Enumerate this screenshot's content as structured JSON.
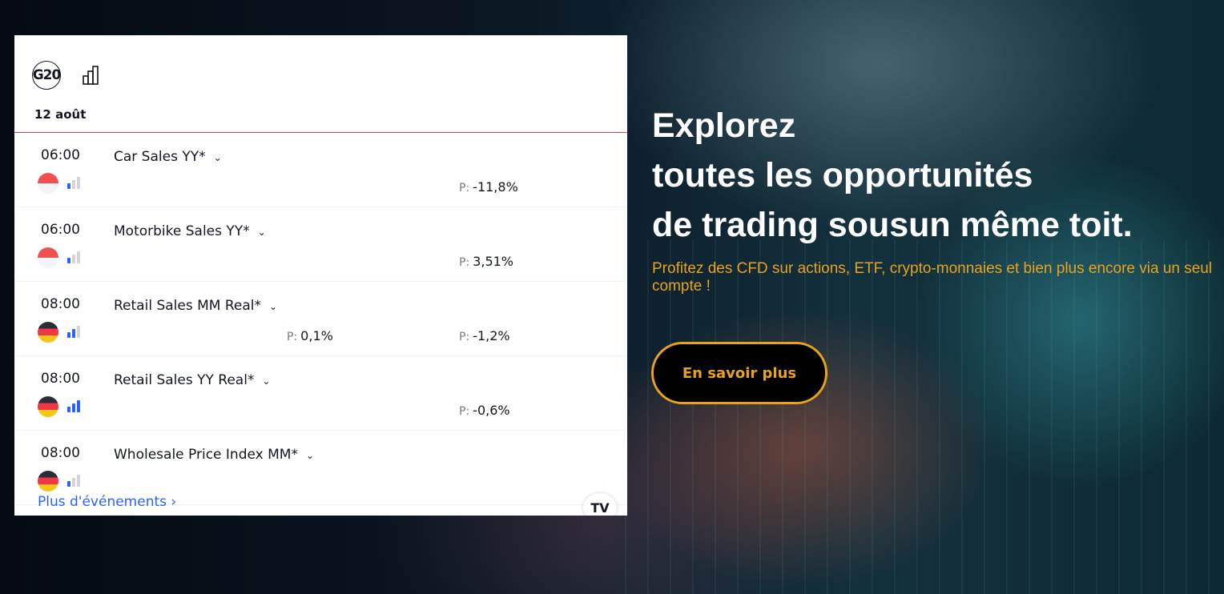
{
  "widget": {
    "date": "12 août",
    "events": [
      {
        "time": "06:00",
        "title": "Car Sales YY*",
        "country": "Indonesia",
        "importance": 1,
        "values": [
          {
            "label": "P:",
            "value": "-11,8%",
            "col": "previous"
          }
        ]
      },
      {
        "time": "06:00",
        "title": "Motorbike Sales YY*",
        "country": "Indonesia",
        "importance": 1,
        "values": [
          {
            "label": "P:",
            "value": "3,51%",
            "col": "previous"
          }
        ]
      },
      {
        "time": "08:00",
        "title": "Retail Sales MM Real*",
        "country": "Germany",
        "importance": 2,
        "values": [
          {
            "label": "P:",
            "value": "0,1%",
            "col": "forecast"
          },
          {
            "label": "P:",
            "value": "-1,2%",
            "col": "previous"
          }
        ]
      },
      {
        "time": "08:00",
        "title": "Retail Sales YY Real*",
        "country": "Germany",
        "importance": 3,
        "values": [
          {
            "label": "P:",
            "value": "-0,6%",
            "col": "previous"
          }
        ]
      },
      {
        "time": "08:00",
        "title": "Wholesale Price Index MM*",
        "country": "Germany",
        "importance": 1,
        "values": []
      }
    ],
    "more_label": "Plus d'événements",
    "more_chevron": "›",
    "g20_label": "G20",
    "tv_logo": "TV",
    "importance_color": "#2962ff"
  },
  "hero": {
    "line1": "Explorez",
    "line2": "toutes les opportunités",
    "line3": "de trading sousun même toit.",
    "subtitle": "Profitez des CFD sur actions, ETF, crypto-monnaies et bien plus encore via un seul compte !",
    "cta": "En savoir plus",
    "accent": "#e8a21c"
  }
}
